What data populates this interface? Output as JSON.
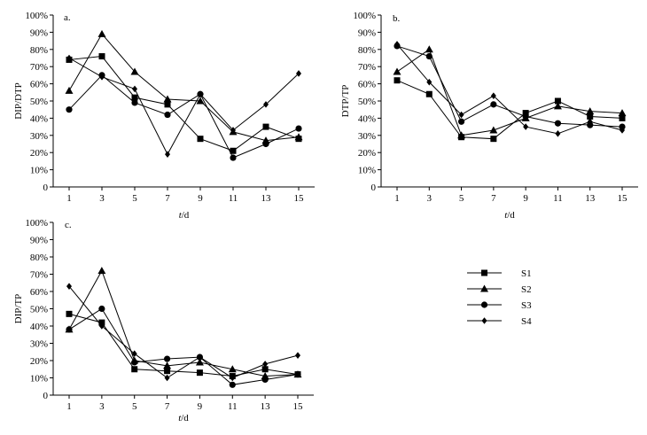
{
  "chart_data": [
    {
      "type": "line",
      "panel_label": "a.",
      "ylabel": "DIP/DTP",
      "xlabel_italic": "t",
      "xlabel_suffix": "/d",
      "x": [
        1,
        3,
        5,
        7,
        9,
        11,
        13,
        15
      ],
      "ylim": [
        0,
        100
      ],
      "yticks": [
        "0",
        "10%",
        "20%",
        "30%",
        "40%",
        "50%",
        "60%",
        "70%",
        "80%",
        "90%",
        "100%"
      ],
      "series": [
        {
          "name": "S1",
          "marker": "square",
          "values": [
            74,
            76,
            52,
            48,
            28,
            21,
            35,
            28
          ]
        },
        {
          "name": "S2",
          "marker": "triangle",
          "values": [
            56,
            89,
            67,
            51,
            50,
            32,
            27,
            29
          ]
        },
        {
          "name": "S3",
          "marker": "circle",
          "values": [
            45,
            65,
            49,
            42,
            54,
            17,
            25,
            34
          ]
        },
        {
          "name": "S4",
          "marker": "diamond",
          "values": [
            75,
            64,
            57,
            19,
            54,
            33,
            48,
            66
          ]
        }
      ]
    },
    {
      "type": "line",
      "panel_label": "b.",
      "ylabel": "DTP/TP",
      "xlabel_italic": "t",
      "xlabel_suffix": "/d",
      "x": [
        1,
        3,
        5,
        7,
        9,
        11,
        13,
        15
      ],
      "ylim": [
        0,
        100
      ],
      "yticks": [
        "0",
        "10%",
        "20%",
        "30%",
        "40%",
        "50%",
        "60%",
        "70%",
        "80%",
        "90%",
        "100%"
      ],
      "series": [
        {
          "name": "S1",
          "marker": "square",
          "values": [
            62,
            54,
            29,
            28,
            43,
            50,
            41,
            40
          ]
        },
        {
          "name": "S2",
          "marker": "triangle",
          "values": [
            67,
            80,
            30,
            33,
            40,
            47,
            44,
            43
          ]
        },
        {
          "name": "S3",
          "marker": "circle",
          "values": [
            82,
            76,
            38,
            48,
            41,
            37,
            36,
            35
          ]
        },
        {
          "name": "S4",
          "marker": "diamond",
          "values": [
            83,
            61,
            42,
            53,
            35,
            31,
            38,
            33
          ]
        }
      ]
    },
    {
      "type": "line",
      "panel_label": "c.",
      "ylabel": "DIP/TP",
      "xlabel_italic": "t",
      "xlabel_suffix": "/d",
      "x": [
        1,
        3,
        5,
        7,
        9,
        11,
        13,
        15
      ],
      "ylim": [
        0,
        100
      ],
      "yticks": [
        "0",
        "10%",
        "20%",
        "30%",
        "40%",
        "50%",
        "60%",
        "70%",
        "80%",
        "90%",
        "100%"
      ],
      "series": [
        {
          "name": "S1",
          "marker": "square",
          "values": [
            47,
            42,
            15,
            14,
            13,
            11,
            15,
            12
          ]
        },
        {
          "name": "S2",
          "marker": "triangle",
          "values": [
            38,
            72,
            20,
            17,
            19,
            15,
            11,
            12
          ]
        },
        {
          "name": "S3",
          "marker": "circle",
          "values": [
            38,
            50,
            19,
            21,
            22,
            6,
            9,
            12
          ]
        },
        {
          "name": "S4",
          "marker": "diamond",
          "values": [
            63,
            40,
            24,
            10,
            22,
            10,
            18,
            23
          ]
        }
      ]
    }
  ],
  "legend": {
    "items": [
      {
        "name": "S1",
        "marker": "square"
      },
      {
        "name": "S2",
        "marker": "triangle"
      },
      {
        "name": "S3",
        "marker": "circle"
      },
      {
        "name": "S4",
        "marker": "diamond"
      }
    ]
  }
}
